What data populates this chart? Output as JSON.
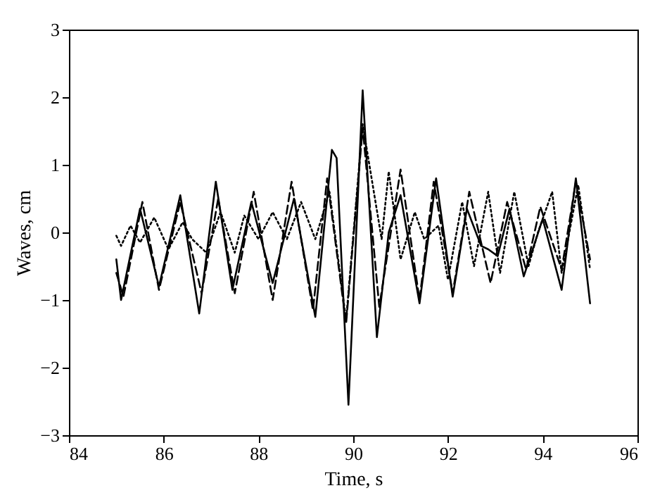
{
  "chart_data": {
    "type": "line",
    "xlabel": "Time, s",
    "ylabel": "Waves, cm",
    "xlim": [
      84,
      96
    ],
    "ylim": [
      -3,
      3
    ],
    "xticks": [
      84,
      86,
      88,
      90,
      92,
      94,
      96
    ],
    "yticks": [
      -3,
      -2,
      -1,
      0,
      1,
      2,
      3
    ],
    "grid": false,
    "marker": "none",
    "series": [
      {
        "color": "#000000",
        "line_style": "solid",
        "x": [
          85.0,
          85.1,
          85.5,
          85.9,
          86.35,
          86.75,
          87.1,
          87.45,
          87.85,
          88.3,
          88.75,
          89.2,
          89.55,
          89.65,
          89.9,
          90.2,
          90.5,
          90.75,
          91.0,
          91.4,
          91.75,
          92.1,
          92.4,
          92.7,
          92.85,
          93.05,
          93.3,
          93.6,
          94.0,
          94.4,
          94.7,
          95.0
        ],
        "values": [
          -0.4,
          -1.0,
          0.35,
          -0.8,
          0.55,
          -1.2,
          0.75,
          -0.85,
          0.45,
          -0.75,
          0.5,
          -1.25,
          1.22,
          1.1,
          -2.55,
          2.1,
          -1.55,
          0.0,
          0.55,
          -1.05,
          0.8,
          -0.95,
          0.35,
          -0.2,
          -0.25,
          -0.35,
          0.35,
          -0.65,
          0.2,
          -0.85,
          0.8,
          -1.05
        ]
      },
      {
        "color": "#000000",
        "line_style": "dashed",
        "x": [
          85.0,
          85.15,
          85.55,
          85.9,
          86.35,
          86.8,
          87.15,
          87.5,
          87.9,
          88.3,
          88.7,
          89.15,
          89.45,
          89.85,
          90.2,
          90.55,
          91.0,
          91.4,
          91.7,
          92.1,
          92.45,
          92.9,
          93.25,
          93.65,
          93.95,
          94.4,
          94.7,
          95.0
        ],
        "values": [
          -0.6,
          -0.95,
          0.45,
          -0.85,
          0.45,
          -0.9,
          0.5,
          -0.9,
          0.6,
          -1.0,
          0.75,
          -1.15,
          0.8,
          -1.35,
          1.55,
          -1.1,
          0.93,
          -1.0,
          0.75,
          -0.9,
          0.6,
          -0.75,
          0.45,
          -0.55,
          0.38,
          -0.55,
          0.75,
          -0.4
        ]
      },
      {
        "color": "#000000",
        "line_style": "dotted",
        "x": [
          85.0,
          85.1,
          85.3,
          85.5,
          85.8,
          86.1,
          86.4,
          86.6,
          86.9,
          87.2,
          87.5,
          87.7,
          88.0,
          88.3,
          88.6,
          88.9,
          89.2,
          89.5,
          89.85,
          90.2,
          90.6,
          90.75,
          91.0,
          91.3,
          91.5,
          91.8,
          92.0,
          92.3,
          92.55,
          92.85,
          93.1,
          93.4,
          93.7,
          93.9,
          94.2,
          94.4,
          94.75,
          95.0
        ],
        "values": [
          -0.05,
          -0.2,
          0.1,
          -0.15,
          0.22,
          -0.25,
          0.15,
          -0.1,
          -0.3,
          0.3,
          -0.3,
          0.25,
          -0.1,
          0.3,
          -0.1,
          0.45,
          -0.1,
          0.6,
          -1.3,
          1.6,
          -0.1,
          0.9,
          -0.4,
          0.3,
          -0.1,
          0.1,
          -0.7,
          0.45,
          -0.5,
          0.6,
          -0.6,
          0.6,
          -0.5,
          0.0,
          0.6,
          -0.6,
          0.7,
          -0.55
        ]
      }
    ]
  }
}
